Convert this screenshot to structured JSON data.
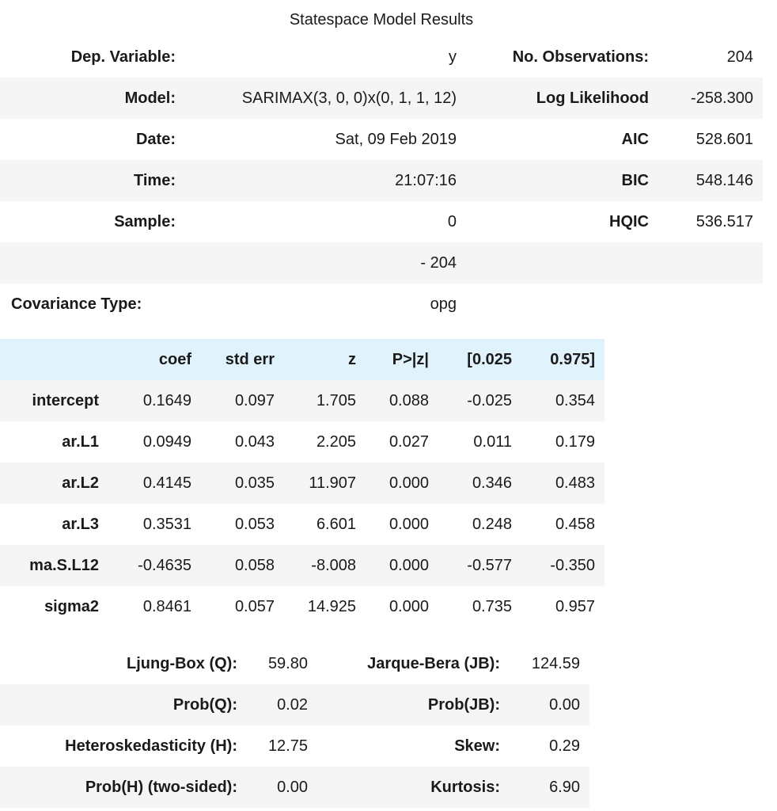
{
  "title": "Statespace Model Results",
  "info_rows": [
    [
      "Dep. Variable:",
      "y",
      "No. Observations:",
      "204"
    ],
    [
      "Model:",
      "SARIMAX(3, 0, 0)x(0, 1, 1, 12)",
      "Log Likelihood",
      "-258.300"
    ],
    [
      "Date:",
      "Sat, 09 Feb 2019",
      "AIC",
      "528.601"
    ],
    [
      "Time:",
      "21:07:16",
      "BIC",
      "548.146"
    ],
    [
      "Sample:",
      "0",
      "HQIC",
      "536.517"
    ],
    [
      "",
      "- 204",
      "",
      ""
    ],
    [
      "Covariance Type:",
      "opg",
      "",
      ""
    ]
  ],
  "coef_headers": [
    "",
    "coef",
    "std err",
    "z",
    "P>|z|",
    "[0.025",
    "0.975]"
  ],
  "coef_rows": [
    [
      "intercept",
      "0.1649",
      "0.097",
      "1.705",
      "0.088",
      "-0.025",
      "0.354"
    ],
    [
      "ar.L1",
      "0.0949",
      "0.043",
      "2.205",
      "0.027",
      "0.011",
      "0.179"
    ],
    [
      "ar.L2",
      "0.4145",
      "0.035",
      "11.907",
      "0.000",
      "0.346",
      "0.483"
    ],
    [
      "ar.L3",
      "0.3531",
      "0.053",
      "6.601",
      "0.000",
      "0.248",
      "0.458"
    ],
    [
      "ma.S.L12",
      "-0.4635",
      "0.058",
      "-8.008",
      "0.000",
      "-0.577",
      "-0.350"
    ],
    [
      "sigma2",
      "0.8461",
      "0.057",
      "14.925",
      "0.000",
      "0.735",
      "0.957"
    ]
  ],
  "diag_rows": [
    [
      "Ljung-Box (Q):",
      "59.80",
      "Jarque-Bera (JB):",
      "124.59"
    ],
    [
      "Prob(Q):",
      "0.02",
      "Prob(JB):",
      "0.00"
    ],
    [
      "Heteroskedasticity (H):",
      "12.75",
      "Skew:",
      "0.29"
    ],
    [
      "Prob(H) (two-sided):",
      "0.00",
      "Kurtosis:",
      "6.90"
    ]
  ]
}
